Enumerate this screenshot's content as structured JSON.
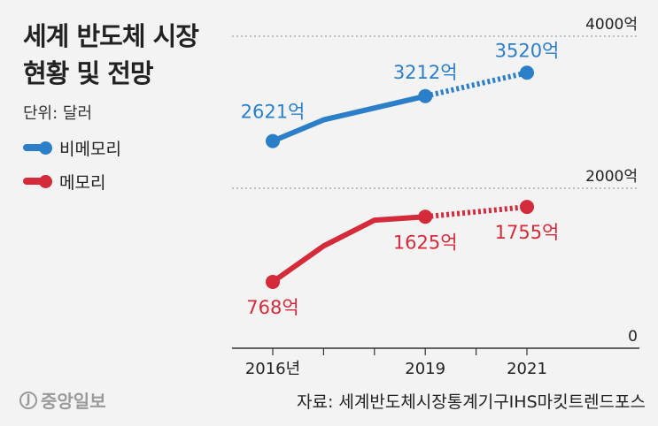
{
  "header": {
    "title_line1": "세계 반도체 시장",
    "title_line2": "현황 및 전망",
    "unit": "단위: 달러"
  },
  "legend": [
    {
      "label": "비메모리",
      "color": "#2b7fc9"
    },
    {
      "label": "메모리",
      "color": "#d42b3a"
    }
  ],
  "footer": {
    "logo_mark": "J",
    "logo_text": "중앙일보",
    "source": "자료: 세계반도체시장통계기구IHS마킷트렌드포스"
  },
  "chart_data": {
    "type": "line",
    "title": "세계 반도체 시장 현황 및 전망",
    "ylabel": "단위: 달러",
    "y_gridlines": [
      {
        "value": 4000,
        "label": "4000억"
      },
      {
        "value": 2000,
        "label": "2000억"
      },
      {
        "value": 0,
        "label": "0"
      }
    ],
    "x_ticks": [
      {
        "value": 2016,
        "label": "2016년"
      },
      {
        "value": 2019,
        "label": "2019"
      },
      {
        "value": 2021,
        "label": "2021"
      }
    ],
    "ylim": [
      0,
      4000
    ],
    "xlim": [
      2016,
      2021
    ],
    "grid": true,
    "legend_position": "left",
    "projection_from": 2019,
    "series": [
      {
        "name": "비메모리",
        "color": "#2b7fc9",
        "points": [
          {
            "x": 2016,
            "y": 2621,
            "label": "2621억"
          },
          {
            "x": 2017,
            "y": 2900
          },
          {
            "x": 2019,
            "y": 3212,
            "label": "3212억"
          },
          {
            "x": 2021,
            "y": 3520,
            "label": "3520억"
          }
        ]
      },
      {
        "name": "메모리",
        "color": "#d42b3a",
        "points": [
          {
            "x": 2016,
            "y": 768,
            "label": "768억"
          },
          {
            "x": 2017,
            "y": 1240
          },
          {
            "x": 2018,
            "y": 1580
          },
          {
            "x": 2019,
            "y": 1625,
            "label": "1625억"
          },
          {
            "x": 2021,
            "y": 1755,
            "label": "1755억"
          }
        ]
      }
    ]
  }
}
